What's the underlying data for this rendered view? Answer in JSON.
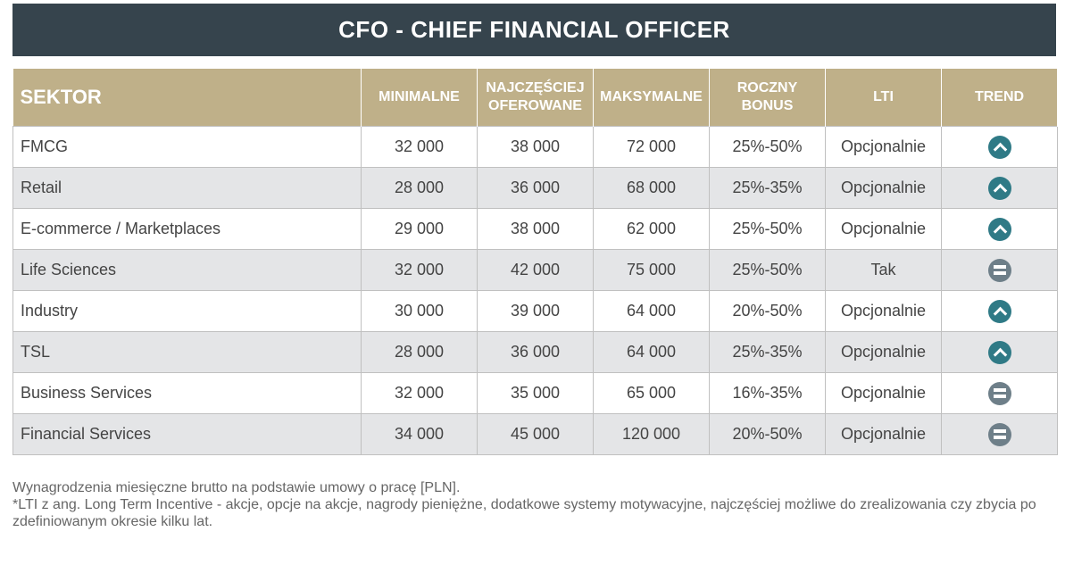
{
  "title": "CFO - CHIEF FINANCIAL OFFICER",
  "headers": {
    "sektor": "SEKTOR",
    "min": "MINIMALNE",
    "naj": "NAJCZĘŚCIEJ OFEROWANE",
    "max": "MAKSYMALNE",
    "bonus": "ROCZNY BONUS",
    "lti": "LTI",
    "trend": "TREND"
  },
  "rows": [
    {
      "sektor": "FMCG",
      "min": "32 000",
      "naj": "38 000",
      "max": "72 000",
      "bonus": "25%-50%",
      "lti": "Opcjonalnie",
      "trend": "up"
    },
    {
      "sektor": "Retail",
      "min": "28 000",
      "naj": "36 000",
      "max": "68 000",
      "bonus": "25%-35%",
      "lti": "Opcjonalnie",
      "trend": "up"
    },
    {
      "sektor": "E-commerce / Marketplaces",
      "min": "29 000",
      "naj": "38 000",
      "max": "62 000",
      "bonus": "25%-50%",
      "lti": "Opcjonalnie",
      "trend": "up"
    },
    {
      "sektor": "Life Sciences",
      "min": "32 000",
      "naj": "42 000",
      "max": "75 000",
      "bonus": "25%-50%",
      "lti": "Tak",
      "trend": "equal"
    },
    {
      "sektor": "Industry",
      "min": "30 000",
      "naj": "39 000",
      "max": "64 000",
      "bonus": "20%-50%",
      "lti": "Opcjonalnie",
      "trend": "up"
    },
    {
      "sektor": "TSL",
      "min": "28 000",
      "naj": "36 000",
      "max": "64 000",
      "bonus": "25%-35%",
      "lti": "Opcjonalnie",
      "trend": "up"
    },
    {
      "sektor": "Business Services",
      "min": "32 000",
      "naj": "35 000",
      "max": "65 000",
      "bonus": "16%-35%",
      "lti": "Opcjonalnie",
      "trend": "equal"
    },
    {
      "sektor": "Financial Services",
      "min": "34 000",
      "naj": "45 000",
      "max": "120 000",
      "bonus": "20%-50%",
      "lti": "Opcjonalnie",
      "trend": "equal"
    }
  ],
  "footnotes": [
    "Wynagrodzenia miesięczne brutto na podstawie umowy o pracę [PLN].",
    "*LTI z ang. Long Term Incentive - akcje, opcje na akcje, nagrody pieniężne, dodatkowe systemy motywacyjne, najczęściej możliwe do zrealizowania czy zbycia po zdefiniowanym okresie kilku lat."
  ],
  "colors": {
    "title_bg": "#36444d",
    "header_bg": "#bfb089",
    "trend_up": "#2f7a86",
    "trend_equal": "#6e7f89"
  }
}
